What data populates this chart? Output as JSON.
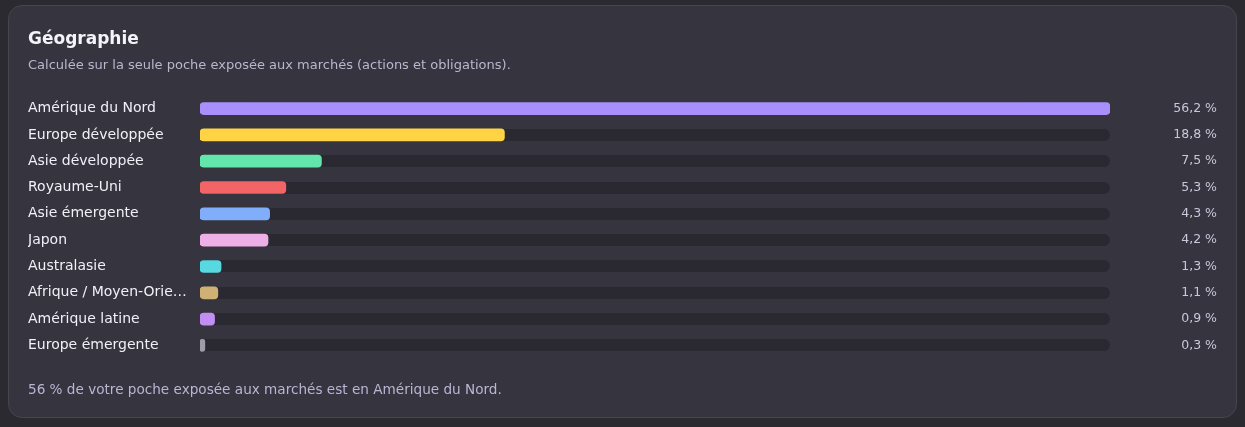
{
  "chart_data": {
    "type": "bar",
    "orientation": "horizontal",
    "title": "Géographie",
    "subtitle": "Calculée sur la seule poche exposée aux marchés (actions et obligations).",
    "categories": [
      "Amérique du Nord",
      "Europe développée",
      "Asie développée",
      "Royaume-Uni",
      "Asie émergente",
      "Japon",
      "Australasie",
      "Afrique / Moyen-Orie…",
      "Amérique latine",
      "Europe émergente"
    ],
    "values": [
      56.2,
      18.8,
      7.5,
      5.3,
      4.3,
      4.2,
      1.3,
      1.1,
      0.9,
      0.3
    ],
    "colors": [
      "#a98ffb",
      "#fed344",
      "#62e6ab",
      "#f26466",
      "#80aefb",
      "#eeaee6",
      "#58d8df",
      "#cfb175",
      "#c18ef3",
      "#9e9ca8"
    ],
    "value_labels": [
      "56,2 %",
      "18,8 %",
      "7,5 %",
      "5,3 %",
      "4,3 %",
      "4,2 %",
      "1,3 %",
      "1,1 %",
      "0,9 %",
      "0,3 %"
    ],
    "xlim": [
      0,
      56.2
    ],
    "tick_labels": "y",
    "grid": false,
    "legend": false,
    "annotations": [
      "56 % de votre poche exposée aux marchés est en Amérique du Nord."
    ]
  }
}
